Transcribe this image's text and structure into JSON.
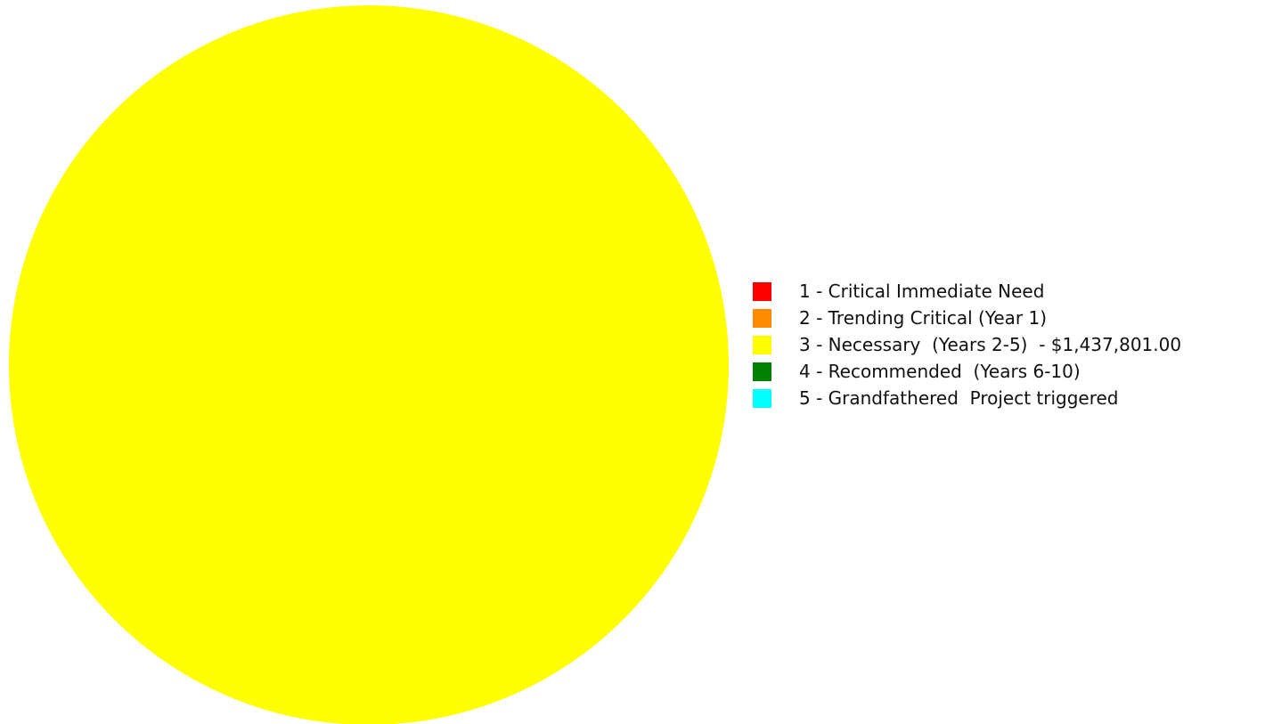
{
  "chart_data": {
    "type": "pie",
    "title": "",
    "legend_position": "right",
    "categories": [
      "1 - Critical Immediate Need",
      "2 - Trending Critical (Year 1)",
      "3 - Necessary  (Years 2-5)  - $1,437,801.00",
      "4 - Recommended  (Years 6-10)",
      "5 - Grandfathered  Project triggered"
    ],
    "values": [
      0,
      0,
      1437801.0,
      0,
      0
    ],
    "colors": [
      "#ff0000",
      "#ff8c00",
      "#ffff00",
      "#008000",
      "#00ffff"
    ]
  }
}
